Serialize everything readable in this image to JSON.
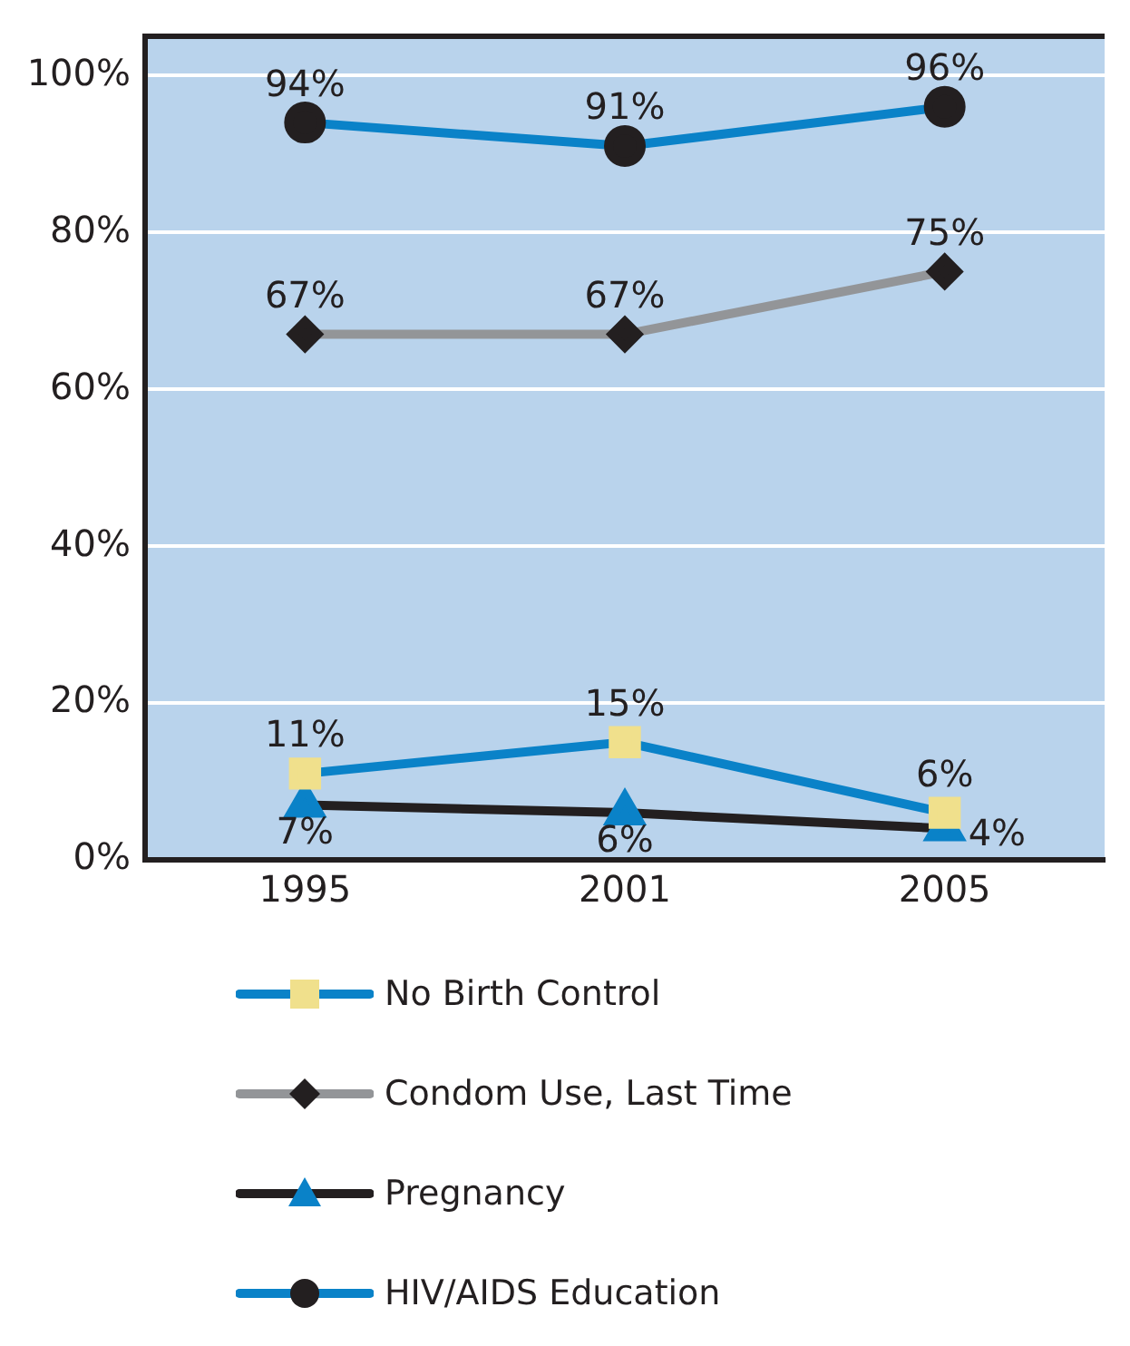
{
  "chart_data": {
    "type": "line",
    "categories": [
      "1995",
      "2001",
      "2005"
    ],
    "series": [
      {
        "name": "No Birth Control",
        "color": "#0a82c8",
        "colors": [
          "#f0e08c",
          "#f0e08c",
          "#f0e08c"
        ],
        "marker": "square",
        "values": [
          11,
          15,
          6
        ],
        "value_labels": [
          "11%",
          "15%",
          "6%"
        ]
      },
      {
        "name": "Condom Use, Last Time",
        "color": "#939598",
        "colors": [
          "#231f20",
          "#231f20",
          "#231f20"
        ],
        "marker": "diamond",
        "values": [
          67,
          67,
          75
        ],
        "value_labels": [
          "67%",
          "67%",
          "75%"
        ]
      },
      {
        "name": "Pregnancy",
        "color": "#231f20",
        "colors": [
          "#0a82c8",
          "#0a82c8",
          "#0a82c8"
        ],
        "marker": "triangle",
        "values": [
          7,
          6,
          4
        ],
        "value_labels": [
          "7%",
          "6%",
          "4%"
        ]
      },
      {
        "name": "HIV/AIDS Education",
        "color": "#0a82c8",
        "colors": [
          "#231f20",
          "#231f20",
          "#231f20"
        ],
        "marker": "circle",
        "values": [
          94,
          91,
          96
        ],
        "value_labels": [
          "94%",
          "91%",
          "96%"
        ]
      }
    ],
    "ylim": [
      0,
      105
    ],
    "yticks": [
      {
        "value": 0,
        "label": "0%"
      },
      {
        "value": 20,
        "label": "20%"
      },
      {
        "value": 40,
        "label": "40%"
      },
      {
        "value": 60,
        "label": "60%"
      },
      {
        "value": 80,
        "label": "80%"
      },
      {
        "value": 100,
        "label": "100%"
      }
    ],
    "grid": "y",
    "legend": "bottom"
  }
}
